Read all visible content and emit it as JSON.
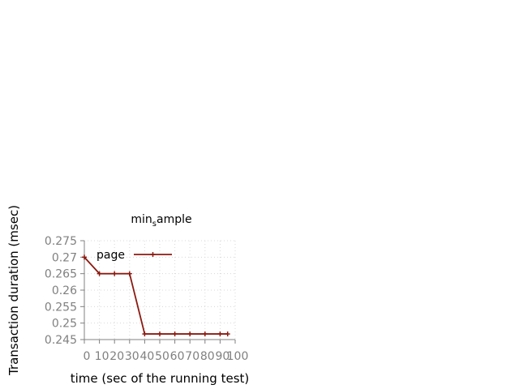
{
  "chart_data": {
    "type": "line",
    "title": {
      "main": "min",
      "sub": "s",
      "rest": "ample"
    },
    "xlabel": "time (sec of the running test)",
    "ylabel": "Transaction duration (msec)",
    "xlim": [
      0,
      100
    ],
    "ylim": [
      0.245,
      0.275
    ],
    "x_ticks": [
      0,
      10,
      20,
      30,
      40,
      50,
      60,
      70,
      80,
      90,
      100
    ],
    "x_tick_labels": [
      "0",
      "10",
      "20",
      "30",
      "40",
      "50",
      "60",
      "70",
      "80",
      "90",
      "100"
    ],
    "y_ticks": [
      0.245,
      0.25,
      0.255,
      0.26,
      0.265,
      0.27,
      0.275
    ],
    "y_tick_labels": [
      "0.245",
      "0.25",
      "0.255",
      "0.26",
      "0.265",
      "0.27",
      "0.275"
    ],
    "grid": true,
    "legend_position": "top-left",
    "series": [
      {
        "name": "page",
        "color": "#8b1a10",
        "marker": "plus",
        "x": [
          0,
          10,
          20,
          30,
          40,
          50,
          60,
          70,
          80,
          90,
          95
        ],
        "y": [
          0.27,
          0.265,
          0.265,
          0.265,
          0.2467,
          0.2467,
          0.2467,
          0.2467,
          0.2467,
          0.2467,
          0.2467
        ]
      }
    ]
  },
  "colors": {
    "axis": "#808080",
    "tick_label": "#808080",
    "grid": "#d8d8d8",
    "text": "#000000"
  }
}
